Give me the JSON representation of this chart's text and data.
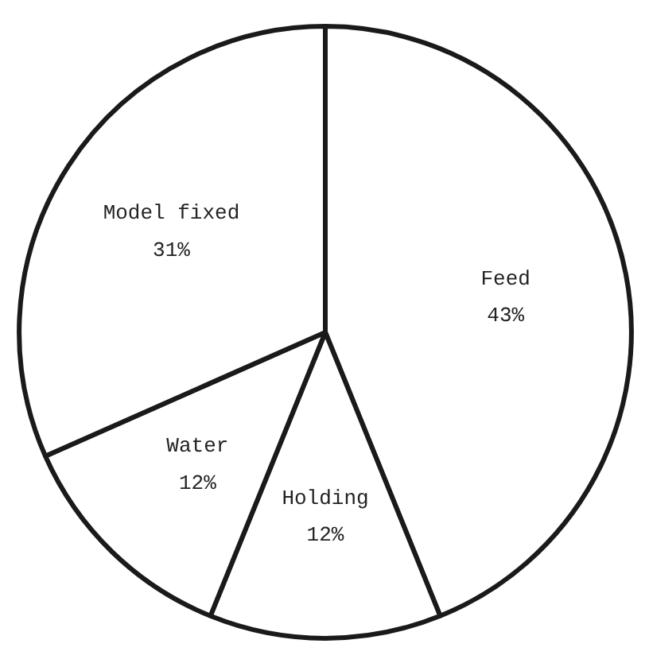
{
  "chart_data": {
    "type": "pie",
    "categories": [
      "Feed",
      "Holding",
      "Water",
      "Model fixed"
    ],
    "values": [
      43,
      12,
      12,
      31
    ],
    "colors": [
      "#ffffff",
      "#ffffff",
      "#ffffff",
      "#ffffff"
    ],
    "value_labels": [
      "43%",
      "12%",
      "12%",
      "31%"
    ]
  }
}
